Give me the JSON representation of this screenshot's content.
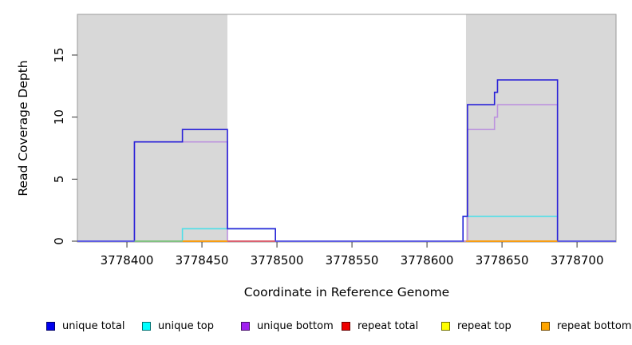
{
  "chart_data": {
    "type": "line",
    "subtype": "step",
    "title": "",
    "xlabel": "Coordinate in Reference Genome",
    "ylabel": "Read Coverage Depth",
    "xlim": [
      3778367,
      3778726
    ],
    "ylim": [
      0,
      18.28
    ],
    "x_ticks": [
      3778400,
      3778450,
      3778500,
      3778550,
      3778600,
      3778650,
      3778700
    ],
    "y_ticks": [
      0,
      5,
      10,
      15
    ],
    "grid": false,
    "legend_position": "bottom",
    "background_color": "#ffffff",
    "frame_color": "#9a9a9a",
    "tick_color": "#333333",
    "shaded_regions": [
      {
        "x0": 3778367,
        "x1": 3778467,
        "color": "#d8d8d8"
      },
      {
        "x0": 3778626,
        "x1": 3778726,
        "color": "#d8d8d8"
      }
    ],
    "series": [
      {
        "name": "unique total",
        "color": "#2a22d8",
        "legend_color": "#0000ee",
        "steps": [
          [
            3778367,
            0
          ],
          [
            3778405,
            8
          ],
          [
            3778437,
            9
          ],
          [
            3778467,
            1
          ],
          [
            3778499,
            0
          ],
          [
            3778624,
            2
          ],
          [
            3778627,
            11
          ],
          [
            3778645,
            12
          ],
          [
            3778647,
            13
          ],
          [
            3778687,
            0
          ],
          [
            3778726,
            0
          ]
        ]
      },
      {
        "name": "unique top",
        "color": "#4fdfe8",
        "legend_color": "#00ffff",
        "steps": [
          [
            3778367,
            0
          ],
          [
            3778437,
            1
          ],
          [
            3778499,
            0
          ],
          [
            3778624,
            2
          ],
          [
            3778687,
            0
          ],
          [
            3778726,
            0
          ]
        ]
      },
      {
        "name": "unique bottom",
        "color": "#bc93de",
        "legend_color": "#a020f0",
        "steps": [
          [
            3778367,
            0
          ],
          [
            3778405,
            8
          ],
          [
            3778467,
            0
          ],
          [
            3778627,
            9
          ],
          [
            3778645,
            10
          ],
          [
            3778647,
            11
          ],
          [
            3778687,
            0
          ],
          [
            3778726,
            0
          ]
        ]
      },
      {
        "name": "repeat total",
        "color": "#dd5566",
        "legend_color": "#ee0000",
        "steps": [
          [
            3778367,
            0
          ],
          [
            3778726,
            0
          ]
        ]
      },
      {
        "name": "repeat top",
        "color": "#f0f000",
        "legend_color": "#ffff00",
        "steps": [
          [
            3778367,
            0
          ],
          [
            3778726,
            0
          ]
        ]
      },
      {
        "name": "repeat bottom",
        "color": "#ffa500",
        "legend_color": "#ffa500",
        "steps": [
          [
            3778367,
            0
          ],
          [
            3778726,
            0
          ]
        ]
      }
    ],
    "baseline_segments": [
      {
        "x0": 3778367,
        "x1": 3778405,
        "color": "#5c5ceb"
      },
      {
        "x0": 3778405,
        "x1": 3778437,
        "color": "#7cc87c"
      },
      {
        "x0": 3778437,
        "x1": 3778467,
        "color": "#ffa500"
      },
      {
        "x0": 3778467,
        "x1": 3778499,
        "color": "#dd5566"
      },
      {
        "x0": 3778499,
        "x1": 3778624,
        "color": "#5c5ceb"
      },
      {
        "x0": 3778626,
        "x1": 3778687,
        "color": "#ffa500"
      },
      {
        "x0": 3778687,
        "x1": 3778726,
        "color": "#5c5ceb"
      }
    ]
  }
}
